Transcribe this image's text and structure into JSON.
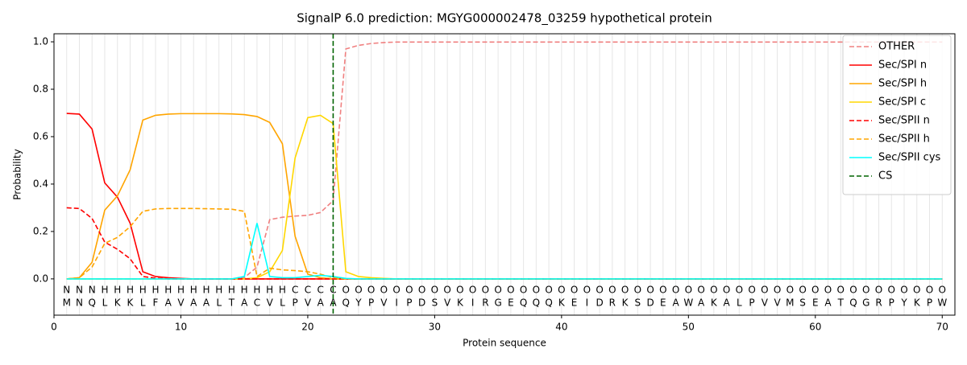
{
  "chart_data": {
    "type": "line",
    "title": "SignalP 6.0 prediction: MGYG000002478_03259 hypothetical protein",
    "xlabel": "Protein sequence",
    "ylabel": "Probability",
    "xlim": [
      0,
      71
    ],
    "ylim": [
      -0.153,
      1.034
    ],
    "xticks": [
      0,
      10,
      20,
      30,
      40,
      50,
      60,
      70
    ],
    "yticks": [
      {
        "value": 0,
        "label": "0.0"
      },
      {
        "value": 0.2,
        "label": "0.2"
      },
      {
        "value": 0.4,
        "label": "0.4"
      },
      {
        "value": 0.6,
        "label": "0.6"
      },
      {
        "value": 0.8,
        "label": "0.8"
      },
      {
        "value": 1,
        "label": "1.0"
      }
    ],
    "legend": "upper right",
    "x": [
      1,
      2,
      3,
      4,
      5,
      6,
      7,
      8,
      9,
      10,
      11,
      12,
      13,
      14,
      15,
      16,
      17,
      18,
      19,
      20,
      21,
      22,
      23,
      24,
      25,
      26,
      27,
      28,
      29,
      30,
      31,
      32,
      33,
      34,
      35,
      36,
      37,
      38,
      39,
      40,
      41,
      42,
      43,
      44,
      45,
      46,
      47,
      48,
      49,
      50,
      51,
      52,
      53,
      54,
      55,
      56,
      57,
      58,
      59,
      60,
      61,
      62,
      63,
      64,
      65,
      66,
      67,
      68,
      69,
      70
    ],
    "residues": [
      "M",
      "N",
      "Q",
      "L",
      "K",
      "K",
      "L",
      "F",
      "A",
      "V",
      "A",
      "A",
      "L",
      "T",
      "A",
      "C",
      "V",
      "L",
      "P",
      "V",
      "A",
      "A",
      "Q",
      "Y",
      "P",
      "V",
      "I",
      "P",
      "D",
      "S",
      "V",
      "K",
      "I",
      "R",
      "G",
      "E",
      "Q",
      "Q",
      "Q",
      "K",
      "E",
      "I",
      "D",
      "R",
      "K",
      "S",
      "D",
      "E",
      "A",
      "W",
      "A",
      "K",
      "A",
      "L",
      "P",
      "V",
      "V",
      "M",
      "S",
      "E",
      "A",
      "T",
      "Q",
      "G",
      "R",
      "P",
      "Y",
      "K",
      "P",
      "W"
    ],
    "labels": [
      "N",
      "N",
      "N",
      "H",
      "H",
      "H",
      "H",
      "H",
      "H",
      "H",
      "H",
      "H",
      "H",
      "H",
      "H",
      "H",
      "H",
      "H",
      "C",
      "C",
      "C",
      "C",
      "O",
      "O",
      "O",
      "O",
      "O",
      "O",
      "O",
      "O",
      "O",
      "O",
      "O",
      "O",
      "O",
      "O",
      "O",
      "O",
      "O",
      "O",
      "O",
      "O",
      "O",
      "O",
      "O",
      "O",
      "O",
      "O",
      "O",
      "O",
      "O",
      "O",
      "O",
      "O",
      "O",
      "O",
      "O",
      "O",
      "O",
      "O",
      "O",
      "O",
      "O",
      "O",
      "O",
      "O",
      "O",
      "O",
      "O",
      "O"
    ],
    "label_colors": {
      "N": "#ff0000",
      "H": "#ffa500",
      "C": "#e6c800",
      "O": "#808080"
    },
    "series": [
      {
        "name": "OTHER",
        "color": "#f08080",
        "linestyle": "dashed",
        "values": [
          0,
          0,
          0,
          0,
          0,
          0,
          0,
          0,
          0,
          0,
          0,
          0,
          0,
          0,
          0.005,
          0.05,
          0.25,
          0.26,
          0.265,
          0.268,
          0.28,
          0.33,
          0.97,
          0.985,
          0.993,
          0.997,
          0.999,
          0.999,
          0.999,
          0.999,
          0.999,
          0.999,
          0.999,
          0.999,
          0.999,
          0.999,
          0.999,
          0.999,
          0.999,
          0.999,
          0.999,
          0.999,
          0.999,
          0.999,
          0.999,
          0.999,
          0.999,
          0.999,
          0.999,
          0.999,
          0.999,
          0.999,
          0.999,
          0.999,
          0.999,
          0.999,
          0.999,
          0.999,
          0.999,
          0.999,
          0.999,
          0.999,
          0.999,
          0.999,
          0.999,
          0.999,
          0.999,
          0.999,
          0.999,
          0.999
        ]
      },
      {
        "name": "Sec/SPI n",
        "color": "#ff0000",
        "linestyle": "solid",
        "values": [
          0.698,
          0.695,
          0.632,
          0.405,
          0.345,
          0.235,
          0.03,
          0.01,
          0.005,
          0.002,
          0,
          0,
          0,
          0,
          0,
          0,
          0,
          0,
          0,
          0,
          0,
          0,
          0,
          0,
          0,
          0,
          0,
          0,
          0,
          0,
          0,
          0,
          0,
          0,
          0,
          0,
          0,
          0,
          0,
          0,
          0,
          0,
          0,
          0,
          0,
          0,
          0,
          0,
          0,
          0,
          0,
          0,
          0,
          0,
          0,
          0,
          0,
          0,
          0,
          0,
          0,
          0,
          0,
          0,
          0,
          0,
          0,
          0,
          0,
          0
        ]
      },
      {
        "name": "Sec/SPI h",
        "color": "#ffa500",
        "linestyle": "solid",
        "values": [
          0,
          0.005,
          0.07,
          0.29,
          0.35,
          0.46,
          0.67,
          0.69,
          0.695,
          0.697,
          0.697,
          0.697,
          0.697,
          0.696,
          0.693,
          0.685,
          0.66,
          0.57,
          0.18,
          0.02,
          0.005,
          0,
          0,
          0,
          0,
          0,
          0,
          0,
          0,
          0,
          0,
          0,
          0,
          0,
          0,
          0,
          0,
          0,
          0,
          0,
          0,
          0,
          0,
          0,
          0,
          0,
          0,
          0,
          0,
          0,
          0,
          0,
          0,
          0,
          0,
          0,
          0,
          0,
          0,
          0,
          0,
          0,
          0,
          0,
          0,
          0,
          0,
          0,
          0,
          0
        ]
      },
      {
        "name": "Sec/SPI c",
        "color": "#ffd700",
        "linestyle": "solid",
        "values": [
          0,
          0,
          0,
          0,
          0,
          0,
          0,
          0,
          0,
          0,
          0,
          0,
          0,
          0,
          0,
          0.005,
          0.03,
          0.12,
          0.51,
          0.68,
          0.69,
          0.655,
          0.03,
          0.01,
          0.005,
          0.002,
          0,
          0,
          0,
          0,
          0,
          0,
          0,
          0,
          0,
          0,
          0,
          0,
          0,
          0,
          0,
          0,
          0,
          0,
          0,
          0,
          0,
          0,
          0,
          0,
          0,
          0,
          0,
          0,
          0,
          0,
          0,
          0,
          0,
          0,
          0,
          0,
          0,
          0,
          0,
          0,
          0,
          0,
          0,
          0
        ]
      },
      {
        "name": "Sec/SPII n",
        "color": "#ff0000",
        "linestyle": "dashed",
        "values": [
          0.3,
          0.297,
          0.255,
          0.155,
          0.125,
          0.085,
          0.01,
          0.003,
          0,
          0,
          0,
          0,
          0,
          0,
          0,
          0,
          0,
          0,
          0,
          0,
          0,
          0,
          0,
          0,
          0,
          0,
          0,
          0,
          0,
          0,
          0,
          0,
          0,
          0,
          0,
          0,
          0,
          0,
          0,
          0,
          0,
          0,
          0,
          0,
          0,
          0,
          0,
          0,
          0,
          0,
          0,
          0,
          0,
          0,
          0,
          0,
          0,
          0,
          0,
          0,
          0,
          0,
          0,
          0,
          0,
          0,
          0,
          0,
          0,
          0
        ]
      },
      {
        "name": "Sec/SPII h",
        "color": "#ffa500",
        "linestyle": "dashed",
        "values": [
          0,
          0.005,
          0.05,
          0.15,
          0.175,
          0.22,
          0.285,
          0.295,
          0.297,
          0.297,
          0.297,
          0.296,
          0.295,
          0.294,
          0.285,
          0.01,
          0.045,
          0.038,
          0.035,
          0.03,
          0.02,
          0.005,
          0,
          0,
          0,
          0,
          0,
          0,
          0,
          0,
          0,
          0,
          0,
          0,
          0,
          0,
          0,
          0,
          0,
          0,
          0,
          0,
          0,
          0,
          0,
          0,
          0,
          0,
          0,
          0,
          0,
          0,
          0,
          0,
          0,
          0,
          0,
          0,
          0,
          0,
          0,
          0,
          0,
          0,
          0,
          0,
          0,
          0,
          0,
          0
        ]
      },
      {
        "name": "Sec/SPII cys",
        "color": "#00ffff",
        "linestyle": "solid",
        "values": [
          0,
          0,
          0,
          0,
          0,
          0,
          0,
          0,
          0,
          0,
          0,
          0,
          0,
          0,
          0.01,
          0.235,
          0.01,
          0.005,
          0.005,
          0.01,
          0.015,
          0.01,
          0.002,
          0,
          0,
          0,
          0,
          0,
          0,
          0,
          0,
          0,
          0,
          0,
          0,
          0,
          0,
          0,
          0,
          0,
          0,
          0,
          0,
          0,
          0,
          0,
          0,
          0,
          0,
          0,
          0,
          0,
          0,
          0,
          0,
          0,
          0,
          0,
          0,
          0,
          0,
          0,
          0,
          0,
          0,
          0,
          0,
          0,
          0,
          0
        ]
      }
    ],
    "cs": {
      "name": "CS",
      "x": 22,
      "color": "#006400",
      "linestyle": "dashed"
    }
  }
}
